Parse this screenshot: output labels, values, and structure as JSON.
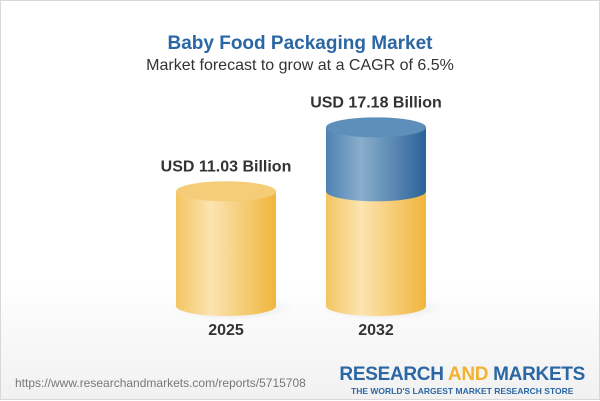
{
  "title": "Baby Food Packaging Market",
  "subtitle": "Market forecast to grow at a CAGR of 6.5%",
  "footer": {
    "url": "https://www.researchandmarkets.com/reports/5715708",
    "logo_line1_a": "RESEARCH ",
    "logo_line1_b": "AND",
    "logo_line1_c": " MARKETS",
    "logo_line2": "THE WORLD'S LARGEST MARKET RESEARCH STORE"
  },
  "colors": {
    "title": "#2b67a4",
    "base": "#f2c25a",
    "growth": "#3f78ab",
    "accent": "#f2b233"
  },
  "chart_data": {
    "type": "bar",
    "style": "3d-cylinder",
    "categories": [
      "2025",
      "2032"
    ],
    "values": [
      11.03,
      17.18
    ],
    "data_labels": [
      "USD 11.03 Billion",
      "USD 17.18 Billion"
    ],
    "title": "Baby Food Packaging Market",
    "subtitle": "Market forecast to grow at a CAGR of 6.5%",
    "cagr_percent": 6.5,
    "unit": "USD Billion",
    "grid": false
  }
}
